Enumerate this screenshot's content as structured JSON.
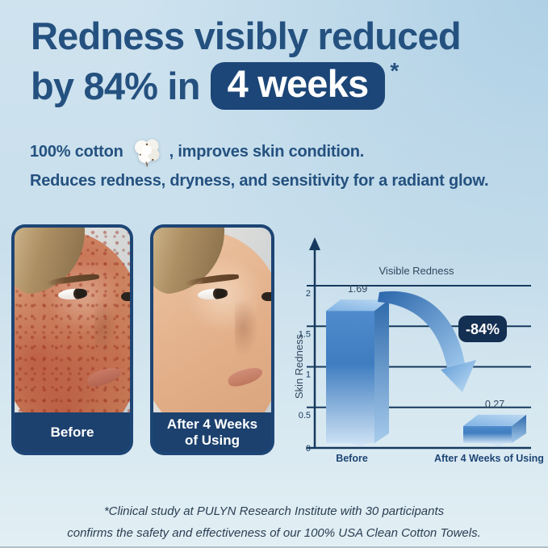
{
  "colors": {
    "headline_text": "#24517f",
    "weeks_badge_bg": "#1c4677",
    "card_border": "#1d4575",
    "card_bar_bg": "#1c416e",
    "chart_line": "#16395e",
    "chart_text": "#31485f",
    "category_label": "#1d4575",
    "annotation_bg": "#132f52",
    "bar_blue": "#3f7dc0",
    "bg_top_right": "#afd0e5",
    "bg_base": "#cfe3ef",
    "bg_bottom": "#e2eff4",
    "footnote_text": "#2c3e53"
  },
  "headline": {
    "line1": "Redness visibly reduced",
    "line2_prefix": "by 84% in",
    "badge": "4 weeks",
    "asterisk": "*"
  },
  "subheadline": {
    "line1_before": "100% cotton",
    "icon": "cotton-boll-icon",
    "line1_after": ", improves skin condition.",
    "line2": "Reduces redness, dryness, and sensitivity for a radiant glow."
  },
  "comparison": {
    "before_label": "Before",
    "after_label": "After 4 Weeks of Using"
  },
  "chart_data": {
    "type": "bar",
    "title": "Visible Redness",
    "ylabel": "Skin Redness",
    "xlabel": "",
    "categories": [
      "Before",
      "After 4 Weeks of Using"
    ],
    "values": [
      1.69,
      0.27
    ],
    "value_labels": [
      "1.69",
      "0.27"
    ],
    "yticks": [
      0,
      0.5,
      1,
      1.5,
      2
    ],
    "ylim": [
      0,
      2.35
    ],
    "grid": true,
    "legend": false,
    "bar_style": "3d-gradient-blue",
    "annotation": {
      "label": "-84%",
      "type": "decrease-arrow"
    }
  },
  "footnote": {
    "lines": [
      "*Clinical study at PULYN Research Institute with 30 participants",
      "confirms the safety and effectiveness of our 100% USA Clean Cotton Towels."
    ]
  }
}
